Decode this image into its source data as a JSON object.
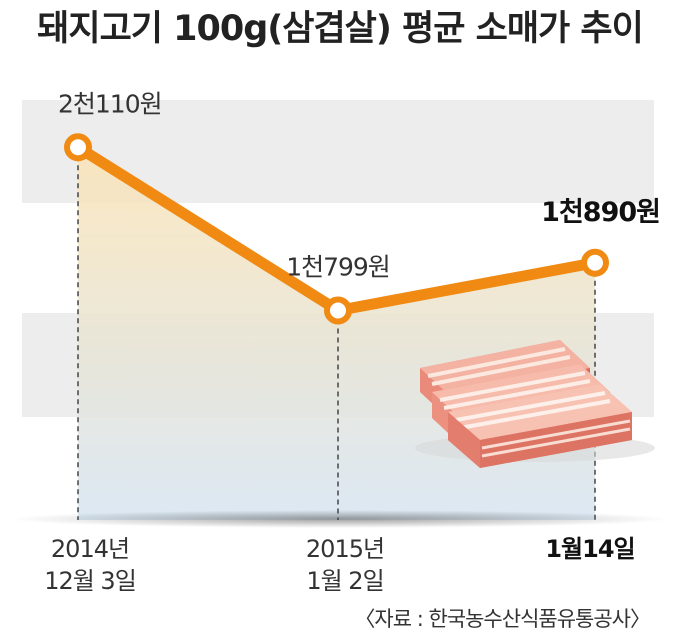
{
  "chart_data": {
    "type": "line",
    "title": "돼지고기 100g(삼겹살) 평균 소매가 추이",
    "x": [
      {
        "line1": "2014년",
        "line2": "12월 3일",
        "bold": false
      },
      {
        "line1": "2015년",
        "line2": "1월 2일",
        "bold": false
      },
      {
        "line1": "1월14일",
        "line2": "",
        "bold": true
      }
    ],
    "series": [
      {
        "values": [
          2110,
          1799,
          1890
        ],
        "labels": [
          "2천110원",
          "1천799원",
          "1천890원"
        ]
      }
    ],
    "ylim": [
      1400,
      2200
    ],
    "grid": false,
    "source": "〈자료 : 한국농수산식품유통공사〉",
    "colors": {
      "line": "#F08A12",
      "fill_top": "#FBE3B6",
      "fill_bottom": "#D8E6F2",
      "band": "#EDEDED"
    }
  }
}
